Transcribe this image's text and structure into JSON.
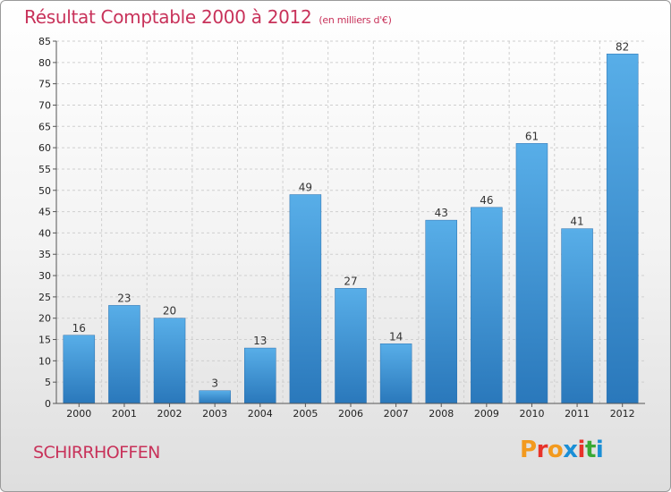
{
  "header": {
    "title": "Résultat Comptable 2000 à 2012",
    "subtitle": "(en milliers d'€)"
  },
  "footer": {
    "commune": "SCHIRRHOFFEN",
    "logo_text": "Proxiti"
  },
  "colors": {
    "bar": "#3a8fd6",
    "title": "#c8325a",
    "gridline": "#cfcfcf",
    "logo": [
      "#f39a1e",
      "#e8332a",
      "#f39a1e",
      "#1a8fd6",
      "#e8332a",
      "#39a935",
      "#1a8fd6"
    ]
  },
  "chart_data": {
    "type": "bar",
    "title": "Résultat Comptable 2000 à 2012",
    "subtitle": "(en milliers d'€)",
    "xlabel": "",
    "ylabel": "",
    "categories": [
      "2000",
      "2001",
      "2002",
      "2003",
      "2004",
      "2005",
      "2006",
      "2007",
      "2008",
      "2009",
      "2010",
      "2011",
      "2012"
    ],
    "values": [
      16,
      23,
      20,
      3,
      13,
      49,
      27,
      14,
      43,
      46,
      61,
      41,
      82
    ],
    "ylim": [
      0,
      85
    ],
    "yticks": [
      0,
      5,
      10,
      15,
      20,
      25,
      30,
      35,
      40,
      45,
      50,
      55,
      60,
      65,
      70,
      75,
      80,
      85
    ],
    "grid": true,
    "data_labels": true
  }
}
